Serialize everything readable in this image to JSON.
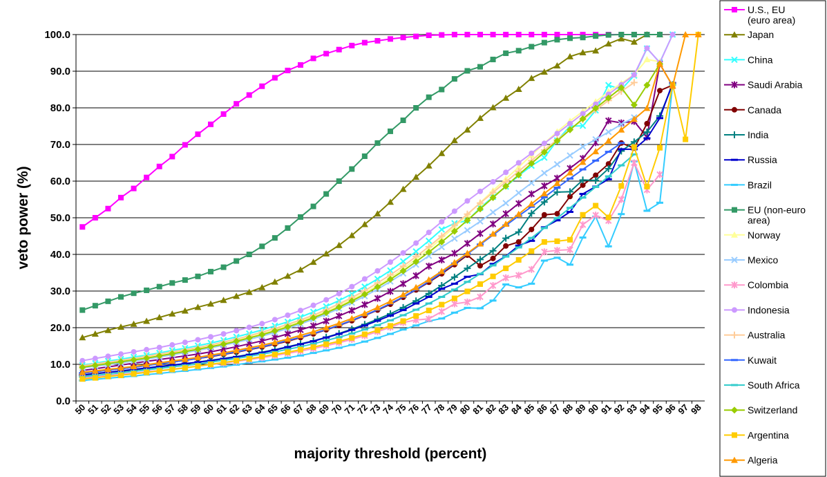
{
  "chart_data": {
    "type": "line",
    "title": "",
    "xlabel": "majority threshold (percent)",
    "ylabel": "veto power (%)",
    "ylim": [
      0,
      100
    ],
    "yticks": [
      "0.0",
      "10.0",
      "20.0",
      "30.0",
      "40.0",
      "50.0",
      "60.0",
      "70.0",
      "80.0",
      "90.0",
      "100.0"
    ],
    "x": [
      50,
      51,
      52,
      53,
      54,
      55,
      56,
      57,
      58,
      59,
      60,
      61,
      62,
      63,
      64,
      65,
      66,
      67,
      68,
      69,
      70,
      71,
      72,
      73,
      74,
      75,
      76,
      77,
      78,
      79,
      80,
      81,
      82,
      83,
      84,
      85,
      86,
      87,
      88,
      89,
      90,
      91,
      92,
      93,
      94,
      95,
      96,
      97,
      98
    ],
    "grid": "horizontal",
    "legend": "right",
    "series": [
      {
        "name": "U.S., EU (euro area)",
        "color": "#ff00ff",
        "marker": "square",
        "values": [
          47.5,
          50,
          52.5,
          55.5,
          58,
          61,
          64,
          66.7,
          69.9,
          72.8,
          75.5,
          78.3,
          81.1,
          83.5,
          85.9,
          88.2,
          90.2,
          91.7,
          93.5,
          94.8,
          95.9,
          97,
          97.8,
          98.3,
          98.8,
          99.2,
          99.5,
          99.8,
          99.9,
          100,
          100,
          100,
          100,
          100,
          100,
          100,
          100,
          100,
          100,
          100,
          100,
          100,
          100,
          100,
          100,
          100,
          null,
          null,
          null
        ]
      },
      {
        "name": "Japan",
        "color": "#808000",
        "marker": "triangle",
        "values": [
          17.3,
          18.3,
          19.3,
          20.2,
          21,
          21.8,
          22.8,
          23.8,
          24.6,
          25.6,
          26.5,
          27.5,
          28.6,
          29.7,
          31,
          32.5,
          34.1,
          35.8,
          37.9,
          40.2,
          42.5,
          45.2,
          48.2,
          51.1,
          54.3,
          57.8,
          61.1,
          64.2,
          67.6,
          71.1,
          74,
          77.2,
          80.1,
          82.7,
          85.1,
          88.1,
          89.8,
          91.5,
          94,
          95.1,
          95.6,
          97.5,
          98.9,
          98,
          100,
          100,
          null,
          null,
          null
        ]
      },
      {
        "name": "China",
        "color": "#33ffff",
        "marker": "x",
        "values": [
          9.8,
          10.3,
          10.9,
          11.4,
          12,
          12.5,
          13.1,
          13.8,
          14.4,
          15.1,
          15.8,
          16.6,
          17.5,
          18.4,
          19.4,
          20.5,
          21.6,
          22.9,
          24.3,
          25.8,
          27.4,
          29.2,
          31.2,
          33.3,
          35.6,
          38.1,
          40.8,
          43.7,
          46.8,
          48.5,
          49.2,
          52.7,
          55.7,
          58.5,
          61.5,
          64.2,
          66.4,
          71.1,
          75,
          75.1,
          79.3,
          86.2,
          85,
          88.8,
          96.2,
          92.4,
          100,
          null,
          null
        ]
      },
      {
        "name": "Saudi Arabia",
        "color": "#800080",
        "marker": "star",
        "values": [
          8.3,
          8.8,
          9.3,
          9.8,
          10.3,
          10.8,
          11.3,
          11.8,
          12.3,
          12.8,
          13.4,
          14.1,
          14.8,
          15.6,
          16.4,
          17.3,
          18.3,
          19.4,
          20.5,
          21.8,
          23.2,
          24.7,
          26.3,
          28,
          29.9,
          32,
          34.2,
          36.8,
          38.5,
          40.3,
          43,
          45.7,
          48.3,
          51.1,
          53.9,
          56.5,
          58.7,
          60.8,
          63.5,
          66.2,
          70.5,
          76.5,
          75.9,
          76.3,
          72,
          92,
          86,
          null,
          null
        ]
      },
      {
        "name": "Canada",
        "color": "#800000",
        "marker": "circle",
        "values": [
          7.6,
          8,
          8.4,
          8.8,
          9.2,
          9.7,
          10.2,
          10.6,
          11.1,
          11.6,
          12.1,
          12.7,
          13.3,
          14,
          14.7,
          15.5,
          16.3,
          17.3,
          18.3,
          19.4,
          20.6,
          21.9,
          23.3,
          24.8,
          26.4,
          28.3,
          30.3,
          32.4,
          34.7,
          37.2,
          39.8,
          36.9,
          38.9,
          42.3,
          43.4,
          46.8,
          50.8,
          51.1,
          55.8,
          58.9,
          61.6,
          64.7,
          70.4,
          69,
          75.7,
          84.7,
          86.2,
          null,
          null
        ]
      },
      {
        "name": "India",
        "color": "#008080",
        "marker": "plus",
        "values": [
          7,
          7.4,
          7.8,
          8.1,
          8.5,
          8.9,
          9.3,
          9.7,
          10.1,
          10.6,
          11.1,
          11.6,
          12.1,
          12.7,
          13.3,
          14,
          14.8,
          15.6,
          16.4,
          17.4,
          18.4,
          19.6,
          20.9,
          22.3,
          23.8,
          25.5,
          27.3,
          29.3,
          31.5,
          33.8,
          36.2,
          38.6,
          41,
          44.4,
          46.1,
          51.2,
          54.3,
          57,
          57.1,
          60.3,
          60.2,
          63.4,
          68.2,
          70.7,
          73.4,
          77.8,
          86.3,
          null,
          null
        ]
      },
      {
        "name": "Russia",
        "color": "#0000cc",
        "marker": "dash",
        "values": [
          7.1,
          7.5,
          7.8,
          8.2,
          8.6,
          9,
          9.4,
          9.8,
          10.2,
          10.6,
          11,
          11.5,
          12,
          12.6,
          13.2,
          13.9,
          14.7,
          15.5,
          16.3,
          17.3,
          18.3,
          19.4,
          20.6,
          21.9,
          23.3,
          24.8,
          26.6,
          28.4,
          30.6,
          32,
          33.9,
          34.6,
          37.4,
          39.5,
          42.4,
          43.7,
          47.4,
          49.3,
          51.6,
          56.5,
          58.5,
          60.5,
          68.7,
          68.7,
          71.7,
          77.2,
          86.8,
          null,
          null
        ]
      },
      {
        "name": "Brazil",
        "color": "#33ccff",
        "marker": "dash",
        "values": [
          5.6,
          5.9,
          6.2,
          6.5,
          6.8,
          7.2,
          7.5,
          7.9,
          8.2,
          8.6,
          9,
          9.4,
          9.9,
          10.4,
          10.8,
          11.3,
          11.8,
          12.4,
          13.1,
          13.8,
          14.5,
          15.3,
          16.2,
          17.2,
          18.3,
          19.5,
          20.6,
          21.8,
          22.5,
          24.1,
          25.4,
          25.3,
          27.4,
          31.8,
          31,
          32,
          38.3,
          39.1,
          37.2,
          44.6,
          50.3,
          42.2,
          51,
          65.4,
          51.9,
          54.1,
          86.3,
          null,
          null
        ]
      },
      {
        "name": "EU (non-euro area)",
        "color": "#339966",
        "marker": "square",
        "values": [
          24.8,
          26,
          27.2,
          28.4,
          29.4,
          30.2,
          31.2,
          32.2,
          33,
          34,
          35.3,
          36.5,
          38.2,
          40,
          42.2,
          44.5,
          47.2,
          50.2,
          53.1,
          56.5,
          60,
          63.3,
          66.8,
          70.4,
          73.6,
          76.6,
          80,
          82.9,
          85,
          87.9,
          90.1,
          91.2,
          93.2,
          94.9,
          95.6,
          96.7,
          97.8,
          98.6,
          99,
          99.2,
          99.6,
          99.9,
          100,
          100,
          100,
          100,
          null,
          null,
          null
        ]
      },
      {
        "name": "Norway",
        "color": "#ffff99",
        "marker": "triangle",
        "values": [
          9.4,
          9.9,
          10.4,
          10.9,
          11.4,
          11.9,
          12.5,
          13.1,
          13.7,
          14.3,
          15,
          15.8,
          16.6,
          17.5,
          18.4,
          19.4,
          20.5,
          21.7,
          23,
          24.4,
          26,
          27.7,
          29.5,
          31.5,
          33.7,
          36.1,
          38.7,
          41.4,
          44.4,
          47.5,
          50.8,
          54.1,
          57.4,
          60.6,
          63.8,
          67.1,
          70.3,
          73.5,
          76.4,
          79,
          81.7,
          84.4,
          86.7,
          89.1,
          93.2,
          92.6,
          null,
          null,
          null
        ]
      },
      {
        "name": "Mexico",
        "color": "#99ccff",
        "marker": "x",
        "values": [
          9,
          9.5,
          9.9,
          10.4,
          10.9,
          11.4,
          12,
          12.6,
          13.2,
          13.8,
          14.5,
          15.2,
          16,
          16.8,
          17.7,
          18.7,
          19.8,
          21,
          22.3,
          23.7,
          25.2,
          26.8,
          28.6,
          30.5,
          32.6,
          34.8,
          37.2,
          39.6,
          42,
          44.3,
          46.6,
          49,
          51.5,
          54,
          56.8,
          59.5,
          62.2,
          64.6,
          67,
          69.4,
          71.4,
          73.4,
          75.5,
          77.4,
          null,
          null,
          null,
          null,
          null
        ]
      },
      {
        "name": "Colombia",
        "color": "#ff99cc",
        "marker": "star",
        "values": [
          6.3,
          6.6,
          6.9,
          7.3,
          7.6,
          8,
          8.3,
          8.7,
          9.1,
          9.5,
          9.9,
          10.3,
          10.8,
          11.3,
          11.8,
          12.4,
          13,
          13.6,
          14.3,
          15.1,
          15.9,
          16.8,
          17.8,
          18.9,
          20.1,
          21.4,
          22.1,
          22.4,
          24.4,
          26.5,
          27,
          28.4,
          31.5,
          33.6,
          34.3,
          35.9,
          40.7,
          41.1,
          41.3,
          48.1,
          50.7,
          49.2,
          55,
          65,
          57.6,
          61.8,
          null,
          null,
          null
        ]
      },
      {
        "name": "Indonesia",
        "color": "#cc99ff",
        "marker": "circle",
        "values": [
          11,
          11.6,
          12.2,
          12.8,
          13.4,
          14,
          14.6,
          15.3,
          16,
          16.7,
          17.5,
          18.3,
          19.2,
          20.1,
          21.1,
          22.2,
          23.4,
          24.7,
          26.1,
          27.6,
          29.3,
          31.2,
          33.3,
          35.5,
          37.9,
          40.4,
          43.1,
          46,
          48.9,
          51.8,
          54.6,
          57.2,
          59.8,
          62.4,
          65,
          67.6,
          70.3,
          73,
          75.7,
          78.4,
          81,
          83.7,
          86.3,
          89,
          96.3,
          92.3,
          100,
          null,
          null
        ]
      },
      {
        "name": "Australia",
        "color": "#ffcc99",
        "marker": "plus",
        "values": [
          9.6,
          10.1,
          10.6,
          11.1,
          11.6,
          12.2,
          12.8,
          13.4,
          14,
          14.6,
          15.3,
          16.1,
          16.9,
          17.8,
          18.8,
          19.8,
          20.9,
          22.1,
          23.4,
          24.9,
          26.5,
          28.2,
          30.1,
          32.2,
          34.4,
          36.8,
          39.4,
          42.1,
          45,
          48,
          51,
          54,
          56.9,
          59.8,
          62.7,
          65.6,
          68.5,
          71.3,
          74.1,
          76.8,
          79.4,
          82,
          84.5,
          86.9,
          null,
          null,
          null,
          null,
          null
        ]
      },
      {
        "name": "Kuwait",
        "color": "#3366ff",
        "marker": "dash",
        "values": [
          7.6,
          8,
          8.4,
          8.8,
          9.2,
          9.7,
          10.1,
          10.6,
          11.1,
          11.6,
          12.2,
          12.8,
          13.4,
          14.1,
          14.8,
          15.6,
          16.5,
          17.4,
          18.4,
          19.5,
          20.7,
          22,
          23.4,
          24.9,
          26.6,
          28.4,
          30.4,
          32.6,
          35,
          37.5,
          40.1,
          42.7,
          45.3,
          47.9,
          50.5,
          53,
          55.6,
          58.2,
          60.7,
          63.2,
          65.6,
          68,
          70.4,
          null,
          null,
          null,
          null,
          null,
          null
        ]
      },
      {
        "name": "South Africa",
        "color": "#33cccc",
        "marker": "dash",
        "values": [
          6.6,
          7,
          7.3,
          7.7,
          8.1,
          8.5,
          8.9,
          9.3,
          9.7,
          10.1,
          10.6,
          11.1,
          11.6,
          12.2,
          12.8,
          13.4,
          14.1,
          14.8,
          15.6,
          16.5,
          17.4,
          18.4,
          19.5,
          20.7,
          22,
          23.4,
          24.9,
          26.6,
          28.4,
          30.4,
          32.5,
          34.7,
          37,
          39.4,
          41.9,
          44.5,
          47.2,
          49.9,
          52.7,
          55.5,
          58.4,
          61.3,
          64.3,
          67.3,
          null,
          null,
          null,
          null,
          null
        ]
      },
      {
        "name": "Switzerland",
        "color": "#99cc00",
        "marker": "diamond",
        "values": [
          9.2,
          9.7,
          10.2,
          10.7,
          11.2,
          11.7,
          12.3,
          12.9,
          13.5,
          14.1,
          14.8,
          15.5,
          16.3,
          17.2,
          18.1,
          19.1,
          20.2,
          21.4,
          22.7,
          24.1,
          25.6,
          27.3,
          29.1,
          31.1,
          33.2,
          35.5,
          38,
          40.6,
          43.4,
          46.3,
          49.3,
          52.4,
          55.5,
          58.6,
          61.7,
          64.8,
          67.9,
          71,
          74,
          77,
          79.9,
          82.7,
          85.5,
          80.8,
          86.2,
          92,
          null,
          null,
          null
        ]
      },
      {
        "name": "Argentina",
        "color": "#ffcc00",
        "marker": "square",
        "values": [
          6,
          6.3,
          6.7,
          7,
          7.4,
          7.8,
          8.2,
          8.6,
          9,
          9.5,
          10,
          10.5,
          11,
          11.5,
          12.1,
          12.7,
          13.3,
          14,
          14.7,
          15.5,
          16.3,
          17.2,
          18.2,
          19.3,
          20.5,
          21.8,
          23.2,
          24.7,
          26.3,
          28,
          29.9,
          31.9,
          34,
          36.2,
          38.5,
          40.9,
          43.4,
          43.6,
          44,
          50.8,
          53.3,
          50.1,
          58.7,
          69.3,
          58.5,
          69.1,
          86.3,
          71.4,
          100
        ]
      },
      {
        "name": "Algeria",
        "color": "#ff9900",
        "marker": "triangle",
        "values": [
          7.8,
          8.2,
          8.6,
          9,
          9.4,
          9.9,
          10.4,
          10.9,
          11.4,
          11.9,
          12.5,
          13.1,
          13.8,
          14.5,
          15.2,
          16,
          16.9,
          17.9,
          18.9,
          20,
          21.2,
          22.5,
          23.9,
          25.5,
          27.2,
          29,
          31,
          33.1,
          35.4,
          37.8,
          40.3,
          42.9,
          45.6,
          48.3,
          51,
          53.8,
          56.6,
          59.4,
          62.3,
          65.2,
          68.1,
          71,
          74,
          76.9,
          79.9,
          92,
          86,
          100,
          100
        ]
      }
    ]
  }
}
